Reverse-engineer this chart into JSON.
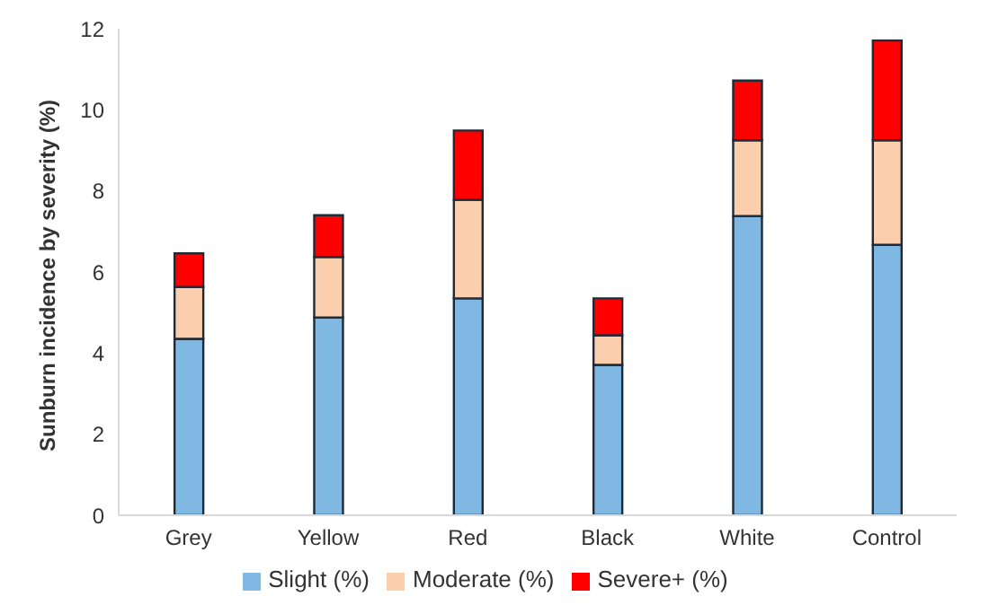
{
  "chart_data": {
    "type": "bar",
    "stacked": true,
    "ylabel": "Sunburn incidence by severity (%)",
    "categories": [
      "Grey",
      "Yellow",
      "Red",
      "Black",
      "White",
      "Control"
    ],
    "series": [
      {
        "name": "Slight (%)",
        "color": "#7fb9e3",
        "values": [
          4.35,
          4.88,
          5.35,
          3.71,
          7.38,
          6.67
        ]
      },
      {
        "name": "Moderate (%)",
        "color": "#fbcfae",
        "values": [
          1.28,
          1.49,
          2.43,
          0.73,
          1.87,
          2.58
        ]
      },
      {
        "name": "Severe+ (%)",
        "color": "#ff0000",
        "values": [
          0.83,
          1.03,
          1.71,
          0.91,
          1.47,
          2.46
        ]
      }
    ],
    "ylim": [
      0,
      12
    ],
    "yticks": [
      0,
      2,
      4,
      6,
      8,
      10,
      12
    ],
    "grid": false,
    "legend": "bottom"
  }
}
